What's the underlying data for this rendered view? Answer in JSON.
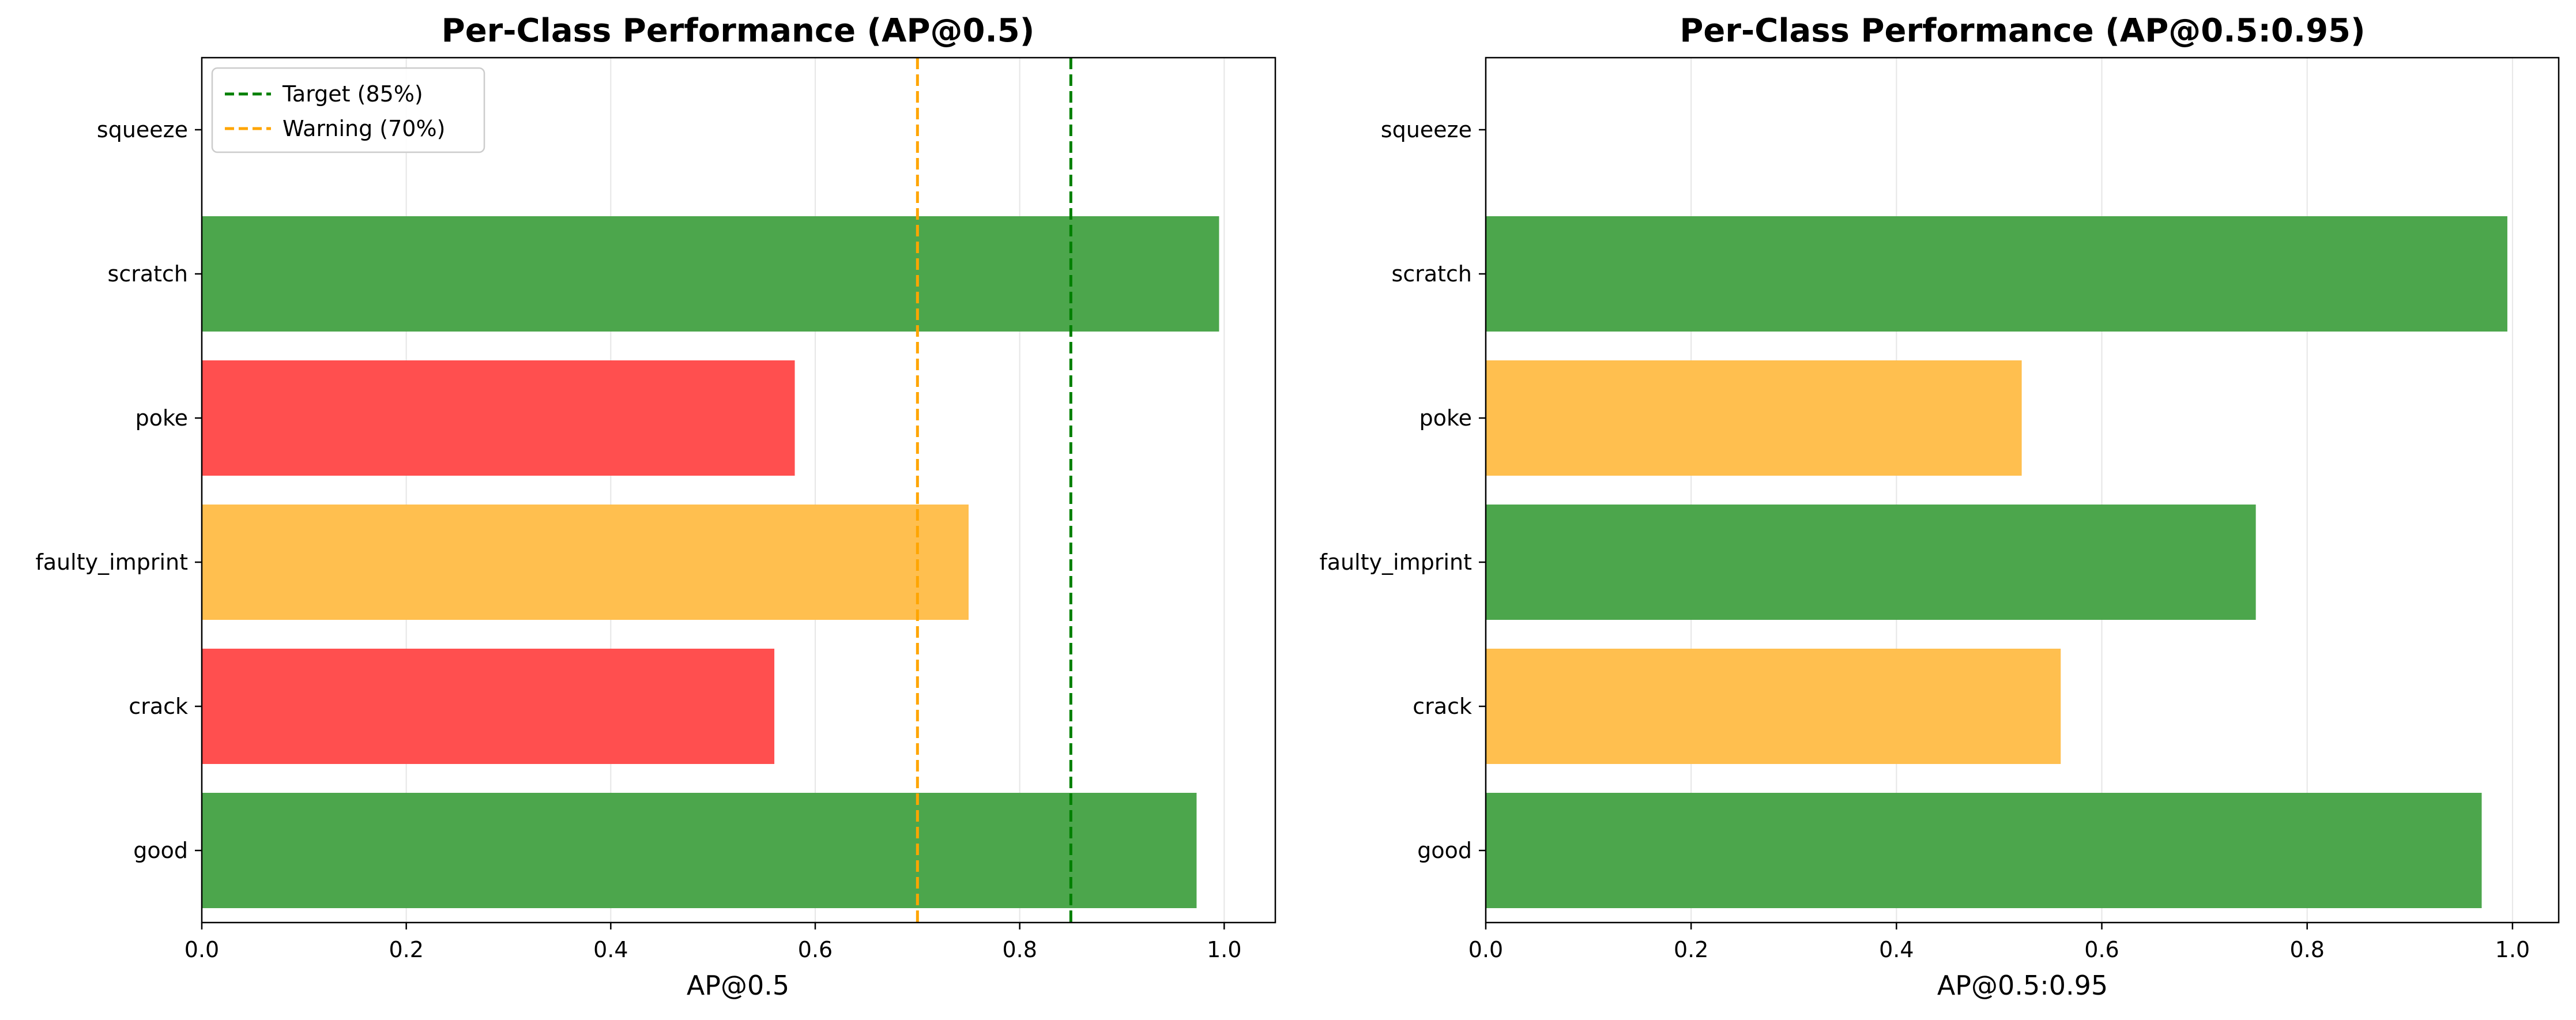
{
  "colors": {
    "good": "#4ca64c",
    "warning": "#ffbf4f",
    "bad": "#ff4f4f",
    "target_line": "#007f00",
    "warning_line": "#ffa500",
    "grid": "#e6e6e6",
    "axis": "#000000"
  },
  "chart_data": [
    {
      "type": "bar",
      "orientation": "horizontal",
      "title": "Per-Class Performance (AP@0.5)",
      "xlabel": "AP@0.5",
      "ylabel": "",
      "xlim": [
        0,
        1.05
      ],
      "xticks": [
        "0.0",
        "0.2",
        "0.4",
        "0.6",
        "0.8",
        "1.0"
      ],
      "grid": "vertical",
      "categories": [
        "good",
        "crack",
        "faulty_imprint",
        "poke",
        "scratch",
        "squeeze"
      ],
      "values": [
        0.973,
        0.56,
        0.75,
        0.58,
        0.995,
        0
      ],
      "bar_status": [
        "good",
        "bad",
        "warning",
        "bad",
        "good",
        "none"
      ],
      "reference_lines": [
        {
          "label": "Target (85%)",
          "x": 0.85,
          "color_key": "target_line",
          "style": "dashed"
        },
        {
          "label": "Warning (70%)",
          "x": 0.7,
          "color_key": "warning_line",
          "style": "dashed"
        }
      ],
      "legend": "top-left"
    },
    {
      "type": "bar",
      "orientation": "horizontal",
      "title": "Per-Class Performance (AP@0.5:0.95)",
      "xlabel": "AP@0.5:0.95",
      "ylabel": "",
      "xlim": [
        0,
        1.045
      ],
      "xticks": [
        "0.0",
        "0.2",
        "0.4",
        "0.6",
        "0.8",
        "1.0"
      ],
      "grid": "vertical",
      "categories": [
        "good",
        "crack",
        "faulty_imprint",
        "poke",
        "scratch",
        "squeeze"
      ],
      "values": [
        0.97,
        0.56,
        0.75,
        0.522,
        0.995,
        0
      ],
      "bar_status": [
        "good",
        "warning",
        "good",
        "warning",
        "good",
        "none"
      ],
      "reference_lines": [],
      "legend": "none"
    }
  ]
}
